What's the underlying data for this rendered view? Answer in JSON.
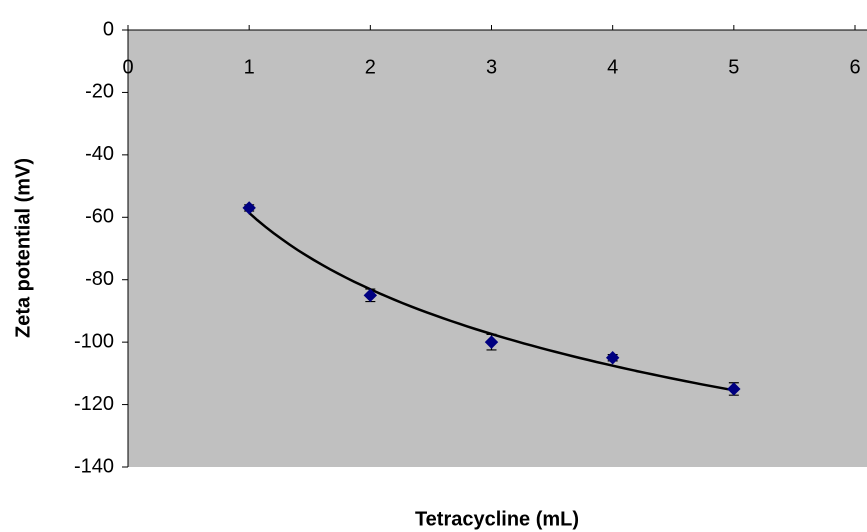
{
  "chart_data": {
    "type": "scatter",
    "xlabel": "Tetracycline (mL)",
    "ylabel": "Zeta potential (mV)",
    "xlim": [
      0,
      6
    ],
    "xticks": [
      0,
      1,
      2,
      3,
      4,
      5,
      6
    ],
    "ylim": [
      -140,
      0
    ],
    "yticks": [
      0,
      -20,
      -40,
      -60,
      -80,
      -100,
      -120,
      -140
    ],
    "series": [
      {
        "name": "Zeta potential",
        "color": "#000080",
        "x": [
          1,
          2,
          3,
          4,
          5
        ],
        "values": [
          -57,
          -85,
          -100,
          -105,
          -115
        ],
        "errors": [
          1,
          2,
          2.5,
          1,
          2
        ]
      }
    ],
    "trendline": "logarithmic",
    "plot_background": "#c0c0c0"
  }
}
